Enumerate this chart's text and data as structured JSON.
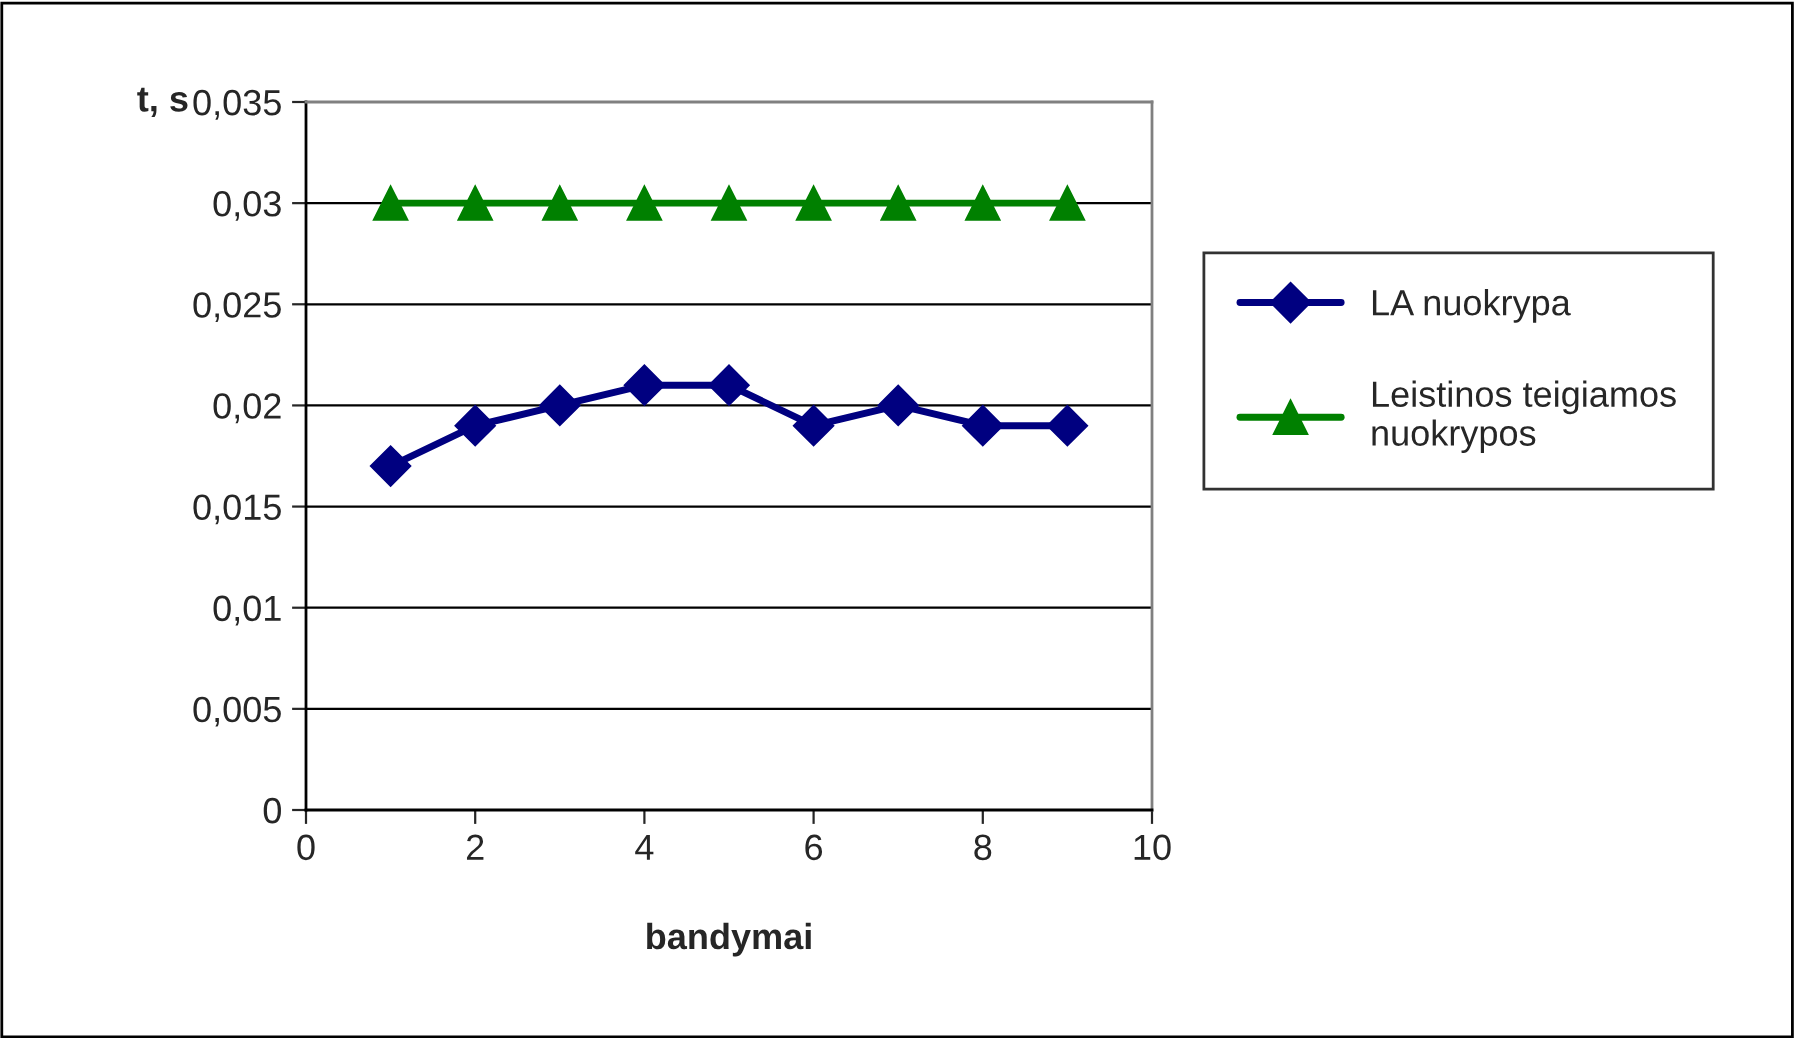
{
  "chart_data": {
    "type": "line",
    "ylabel": "t, s",
    "xlabel": "bandymai",
    "series": [
      {
        "name": "LA nuokrypa",
        "color": "#000080",
        "marker": "diamond",
        "x": [
          1,
          2,
          3,
          4,
          5,
          6,
          7,
          8,
          9
        ],
        "values": [
          0.017,
          0.019,
          0.02,
          0.021,
          0.021,
          0.019,
          0.02,
          0.019,
          0.019
        ]
      },
      {
        "name": "Leistinos teigiamos\nnuokrypos",
        "color": "#008000",
        "marker": "triangle",
        "x": [
          1,
          2,
          3,
          4,
          5,
          6,
          7,
          8,
          9
        ],
        "values": [
          0.03,
          0.03,
          0.03,
          0.03,
          0.03,
          0.03,
          0.03,
          0.03,
          0.03
        ]
      }
    ],
    "xlim": [
      0,
      10
    ],
    "xticks": [
      0,
      2,
      4,
      6,
      8,
      10
    ],
    "ylim": [
      0,
      0.035
    ],
    "yticks": [
      0,
      {
        "value": 0.005,
        "label": "0,005"
      },
      {
        "value": 0.01,
        "label": "0,01"
      },
      {
        "value": 0.015,
        "label": "0,015"
      },
      {
        "value": 0.02,
        "label": "0,02"
      },
      {
        "value": 0.025,
        "label": "0,025"
      },
      {
        "value": 0.03,
        "label": "0,03"
      },
      {
        "value": 0.035,
        "label": "0,035"
      }
    ],
    "grid": "y",
    "legend": "right",
    "line_style": "solid"
  }
}
